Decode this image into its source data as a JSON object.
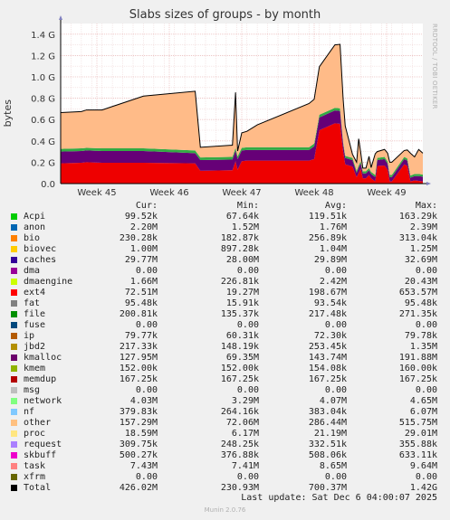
{
  "chart_data": {
    "type": "area",
    "title": "Slabs sizes of groups - by month",
    "ylabel": "bytes",
    "ylim": [
      0,
      1500000000
    ],
    "yticks": [
      {
        "v": 0,
        "label": "0.0"
      },
      {
        "v": 200000000,
        "label": "0.2 G"
      },
      {
        "v": 400000000,
        "label": "0.4 G"
      },
      {
        "v": 600000000,
        "label": "0.6 G"
      },
      {
        "v": 800000000,
        "label": "0.8 G"
      },
      {
        "v": 1000000000,
        "label": "1.0 G"
      },
      {
        "v": 1200000000,
        "label": "1.2 G"
      },
      {
        "v": 1400000000,
        "label": "1.4 G"
      }
    ],
    "xlim": [
      0,
      35
    ],
    "xticks": [
      {
        "v": 3.5,
        "label": "Week 45"
      },
      {
        "v": 10.5,
        "label": "Week 46"
      },
      {
        "v": 17.5,
        "label": "Week 47"
      },
      {
        "v": 24.5,
        "label": "Week 48"
      },
      {
        "v": 31.5,
        "label": "Week 49"
      }
    ],
    "grid": true,
    "x": [
      0,
      2,
      2.5,
      4,
      8,
      13,
      13.5,
      16.6,
      16.9,
      17.1,
      17.5,
      18,
      19,
      24,
      24.5,
      25,
      26.5,
      27,
      27.3,
      27.5,
      28.2,
      28.6,
      28.8,
      29,
      29.2,
      29.5,
      29.8,
      30,
      30.4,
      30.6,
      31.3,
      31.6,
      31.8,
      32,
      33.2,
      33.5,
      33.8,
      34.2,
      34.6,
      35
    ],
    "series": [
      {
        "name": "ext4",
        "color": "#ee0000",
        "values": [
          190,
          195,
          200,
          195,
          195,
          190,
          120,
          125,
          210,
          130,
          210,
          215,
          215,
          215,
          230,
          500,
          565,
          560,
          300,
          180,
          160,
          60,
          100,
          140,
          50,
          50,
          80,
          50,
          20,
          165,
          170,
          130,
          20,
          20,
          180,
          165,
          20,
          30,
          25,
          20
        ]
      },
      {
        "name": "kmalloc",
        "color": "#660077",
        "values": [
          110,
          110,
          110,
          110,
          110,
          95,
          100,
          100,
          100,
          100,
          100,
          100,
          100,
          100,
          120,
          120,
          120,
          120,
          70,
          60,
          60,
          40,
          50,
          50,
          45,
          45,
          45,
          40,
          40,
          55,
          60,
          55,
          40,
          40,
          50,
          50,
          35,
          40,
          45,
          45
        ]
      },
      {
        "name": "network",
        "color": "#33aa44",
        "values": [
          25,
          25,
          25,
          25,
          25,
          25,
          25,
          25,
          25,
          25,
          25,
          25,
          25,
          25,
          25,
          25,
          25,
          25,
          20,
          20,
          20,
          20,
          20,
          20,
          20,
          20,
          20,
          20,
          20,
          20,
          20,
          20,
          20,
          20,
          20,
          20,
          20,
          20,
          20,
          20
        ]
      },
      {
        "name": "other",
        "color": "#ffbb88",
        "values": [
          340,
          345,
          355,
          360,
          490,
          555,
          95,
          110,
          520,
          50,
          140,
          150,
          210,
          410,
          415,
          450,
          590,
          600,
          400,
          280,
          35,
          80,
          250,
          80,
          30,
          30,
          110,
          40,
          200,
          60,
          70,
          80,
          120,
          120,
          60,
          80,
          210,
          160,
          230,
          200
        ]
      }
    ]
  },
  "side_label": "RRDTOOL / TOBI OETIKER",
  "legend": {
    "headers": {
      "cur": "Cur:",
      "min": "Min:",
      "avg": "Avg:",
      "max": "Max:"
    },
    "rows": [
      {
        "name": "Acpi",
        "color": "#00cc00",
        "cur": "99.52k",
        "min": "67.64k",
        "avg": "119.51k",
        "max": "163.29k"
      },
      {
        "name": "anon",
        "color": "#0066b3",
        "cur": "2.20M",
        "min": "1.52M",
        "avg": "1.76M",
        "max": "2.39M"
      },
      {
        "name": "bio",
        "color": "#ff8000",
        "cur": "230.28k",
        "min": "182.87k",
        "avg": "256.89k",
        "max": "313.04k"
      },
      {
        "name": "biovec",
        "color": "#ffcc00",
        "cur": "1.00M",
        "min": "897.28k",
        "avg": "1.04M",
        "max": "1.25M"
      },
      {
        "name": "caches",
        "color": "#330099",
        "cur": "29.77M",
        "min": "28.00M",
        "avg": "29.89M",
        "max": "32.69M"
      },
      {
        "name": "dma",
        "color": "#990099",
        "cur": "0.00",
        "min": "0.00",
        "avg": "0.00",
        "max": "0.00"
      },
      {
        "name": "dmaengine",
        "color": "#ccff00",
        "cur": "1.66M",
        "min": "226.81k",
        "avg": "2.42M",
        "max": "20.43M"
      },
      {
        "name": "ext4",
        "color": "#ff0000",
        "cur": "72.51M",
        "min": "19.27M",
        "avg": "198.67M",
        "max": "653.57M"
      },
      {
        "name": "fat",
        "color": "#808080",
        "cur": "95.48k",
        "min": "15.91k",
        "avg": "93.54k",
        "max": "95.48k"
      },
      {
        "name": "file",
        "color": "#008f00",
        "cur": "200.81k",
        "min": "135.37k",
        "avg": "217.48k",
        "max": "271.35k"
      },
      {
        "name": "fuse",
        "color": "#00487d",
        "cur": "0.00",
        "min": "0.00",
        "avg": "0.00",
        "max": "0.00"
      },
      {
        "name": "ip",
        "color": "#b35a00",
        "cur": "79.77k",
        "min": "60.31k",
        "avg": "72.30k",
        "max": "79.78k"
      },
      {
        "name": "jbd2",
        "color": "#b38f00",
        "cur": "217.33k",
        "min": "148.19k",
        "avg": "253.45k",
        "max": "1.35M"
      },
      {
        "name": "kmalloc",
        "color": "#6b006b",
        "cur": "127.95M",
        "min": "69.35M",
        "avg": "143.74M",
        "max": "191.88M"
      },
      {
        "name": "kmem",
        "color": "#8fb300",
        "cur": "152.00k",
        "min": "152.00k",
        "avg": "154.08k",
        "max": "160.00k"
      },
      {
        "name": "memdup",
        "color": "#b30000",
        "cur": "167.25k",
        "min": "167.25k",
        "avg": "167.25k",
        "max": "167.25k"
      },
      {
        "name": "msg",
        "color": "#bebebe",
        "cur": "0.00",
        "min": "0.00",
        "avg": "0.00",
        "max": "0.00"
      },
      {
        "name": "network",
        "color": "#80ff80",
        "cur": "4.03M",
        "min": "3.29M",
        "avg": "4.07M",
        "max": "4.65M"
      },
      {
        "name": "nf",
        "color": "#80c9ff",
        "cur": "379.83k",
        "min": "264.16k",
        "avg": "383.04k",
        "max": "6.07M"
      },
      {
        "name": "other",
        "color": "#ffc080",
        "cur": "157.29M",
        "min": "72.06M",
        "avg": "286.44M",
        "max": "515.75M"
      },
      {
        "name": "proc",
        "color": "#ffe680",
        "cur": "18.59M",
        "min": "6.17M",
        "avg": "21.19M",
        "max": "29.01M"
      },
      {
        "name": "request",
        "color": "#aa80ff",
        "cur": "309.75k",
        "min": "248.25k",
        "avg": "332.51k",
        "max": "355.88k"
      },
      {
        "name": "skbuff",
        "color": "#ee00cc",
        "cur": "500.27k",
        "min": "376.88k",
        "avg": "508.06k",
        "max": "633.11k"
      },
      {
        "name": "task",
        "color": "#ff8080",
        "cur": "7.43M",
        "min": "7.41M",
        "avg": "8.65M",
        "max": "9.64M"
      },
      {
        "name": "xfrm",
        "color": "#666600",
        "cur": "0.00",
        "min": "0.00",
        "avg": "0.00",
        "max": "0.00"
      },
      {
        "name": "Total",
        "color": "#000000",
        "cur": "426.02M",
        "min": "230.93M",
        "avg": "700.37M",
        "max": "1.42G"
      }
    ]
  },
  "last_update": "Last update: Sat Dec  6 04:00:07 2025",
  "munin_version": "Munin 2.0.76"
}
